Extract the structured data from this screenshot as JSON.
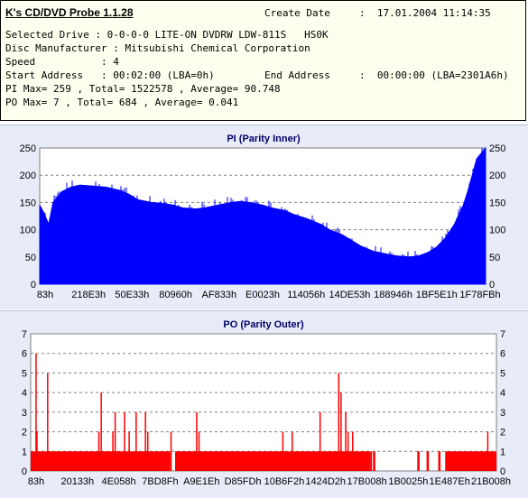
{
  "header": {
    "app_title": "K's CD/DVD Probe 1.1.28",
    "create_date_label": "Create Date",
    "create_date_value": ":  17.01.2004 11:14:35",
    "selected_drive": "Selected Drive : 0-0-0-0 LITE-ON DVDRW LDW-811S   HS0K",
    "disc_manufacturer": "Disc Manufacturer : Mitsubishi Chemical Corporation",
    "speed": "Speed           : 4",
    "start_address": "Start Address   : 00:02:00 (LBA=0h)",
    "end_address_label": "End Address",
    "end_address_value": ":  00:00:00 (LBA=2301A6h)",
    "pi_summary": "PI Max= 259 , Total= 1522578 , Average= 90.748",
    "po_summary": "PO Max= 7 , Total= 684 , Average= 0.041"
  },
  "colors": {
    "pi_fill": "#0000ff",
    "po_fill": "#ff0000",
    "panel_bg": "#e8ecf8",
    "plot_bg": "#ffffff"
  },
  "chart_data": [
    {
      "type": "area",
      "title": "PI (Parity Inner)",
      "ylim": [
        0,
        250
      ],
      "yticks": [
        "0",
        "50",
        "100",
        "150",
        "200",
        "250"
      ],
      "xtick_labels": [
        "83h",
        "218E3h",
        "50E33h",
        "80960h",
        "AF833h",
        "E0023h",
        "114056h",
        "14DE53h",
        "188946h",
        "1BF5E1h",
        "1F78FBh"
      ],
      "grid": true,
      "series": [
        {
          "x_fraction": [
            0,
            0.01,
            0.02,
            0.03,
            0.05,
            0.07,
            0.09,
            0.12,
            0.15,
            0.18,
            0.2,
            0.22,
            0.25,
            0.28,
            0.3,
            0.32,
            0.35,
            0.37,
            0.4,
            0.43,
            0.45,
            0.47,
            0.5,
            0.52,
            0.55,
            0.57,
            0.6,
            0.63,
            0.65,
            0.68,
            0.7,
            0.72,
            0.75,
            0.78,
            0.8,
            0.83,
            0.85,
            0.87,
            0.89,
            0.91,
            0.93,
            0.95,
            0.96,
            0.97,
            0.98,
            0.99,
            1.0
          ],
          "values": [
            145,
            130,
            110,
            150,
            170,
            178,
            182,
            180,
            178,
            172,
            165,
            155,
            150,
            148,
            145,
            140,
            138,
            140,
            145,
            150,
            152,
            150,
            145,
            140,
            135,
            128,
            120,
            110,
            100,
            90,
            80,
            70,
            60,
            55,
            52,
            50,
            52,
            58,
            68,
            85,
            110,
            145,
            170,
            200,
            230,
            240,
            250
          ]
        }
      ]
    },
    {
      "type": "bar",
      "title": "PO (Parity Outer)",
      "ylim": [
        0,
        7
      ],
      "yticks": [
        "0",
        "1",
        "2",
        "3",
        "4",
        "5",
        "6",
        "7"
      ],
      "xtick_labels": [
        "83h",
        "20133h",
        "4E058h",
        "7BD8Fh",
        "A9E1Eh",
        "D85FDh",
        "10B6F2h",
        "1424D2h",
        "17B008h",
        "1B0025h",
        "1E487Eh",
        "21B008h"
      ],
      "grid": true,
      "baseline_range": [
        [
          0.0,
          0.3
        ],
        [
          0.31,
          0.73
        ],
        [
          0.735,
          0.74
        ],
        [
          0.83,
          0.835
        ],
        [
          0.85,
          0.855
        ],
        [
          0.875,
          0.88
        ],
        [
          0.89,
          1.0
        ]
      ],
      "spikes": {
        "x_fraction": [
          0.01,
          0.012,
          0.035,
          0.145,
          0.15,
          0.175,
          0.18,
          0.2,
          0.21,
          0.225,
          0.245,
          0.25,
          0.3,
          0.355,
          0.36,
          0.54,
          0.56,
          0.62,
          0.66,
          0.665,
          0.675,
          0.68,
          0.69,
          0.7,
          0.73,
          0.98
        ],
        "values": [
          6,
          2,
          5,
          2,
          4,
          2,
          3,
          3,
          2,
          3,
          3,
          2,
          2,
          3,
          2,
          2,
          2,
          3,
          5,
          4,
          3,
          2,
          2,
          1,
          1,
          2
        ]
      }
    }
  ]
}
